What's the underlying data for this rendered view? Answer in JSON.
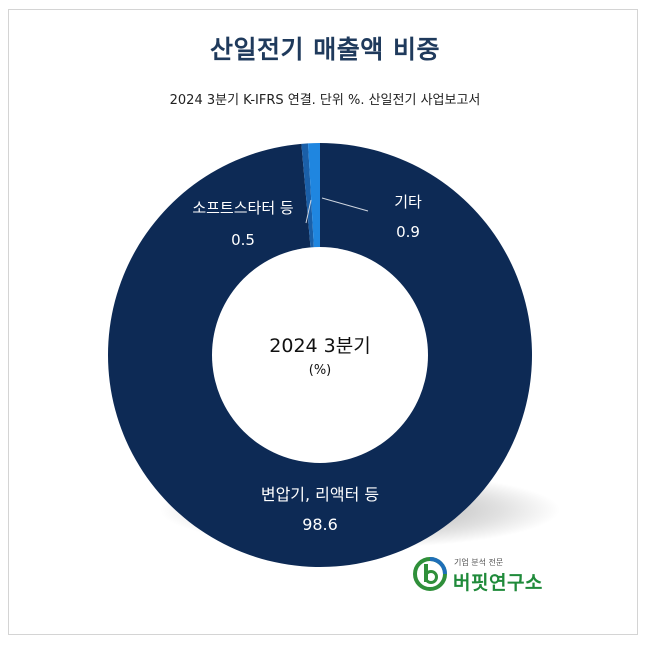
{
  "header": {
    "title": "산일전기 매출액 비중",
    "subtitle": "2024 3분기 K-IFRS 연결. 단위 %. 산일전기 사업보고서"
  },
  "center": {
    "line1": "2024 3분기",
    "line2": "(%)"
  },
  "chart_data": {
    "type": "pie",
    "donut": true,
    "slices": [
      {
        "label": "변압기, 리액터 등",
        "value": 98.6,
        "color": "#0d2a55"
      },
      {
        "label": "소프트스타터 등",
        "value": 0.5,
        "color": "#1a5fa8"
      },
      {
        "label": "기타",
        "value": 0.9,
        "color": "#1f86e0"
      }
    ]
  },
  "labels": {
    "main_name": "변압기, 리액터 등",
    "main_value": "98.6",
    "soft_name": "소프트스타터 등",
    "soft_value": "0.5",
    "other_name": "기타",
    "other_value": "0.9"
  },
  "logo": {
    "small_text": "기업 분석 전문",
    "name": "버핏연구소"
  }
}
